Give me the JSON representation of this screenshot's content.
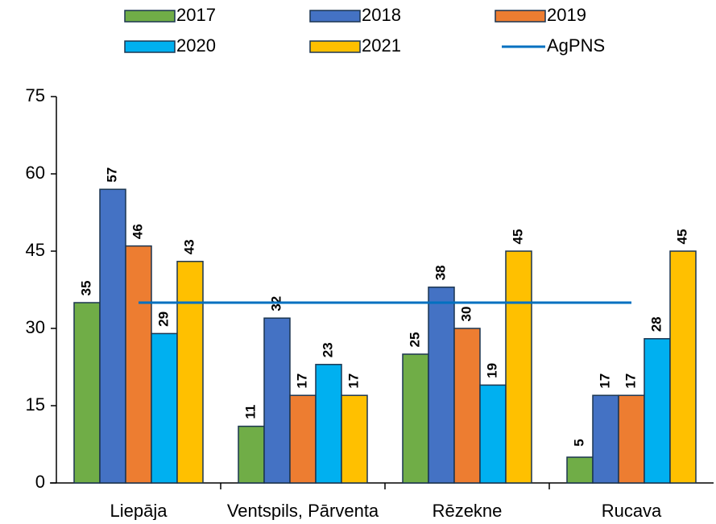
{
  "chart_data": {
    "type": "bar",
    "categories": [
      "Liepāja",
      "Ventspils, Pārventa",
      "Rēzekne",
      "Rucava"
    ],
    "series": [
      {
        "name": "2017",
        "color": "#70ad47",
        "values": [
          35,
          11,
          25,
          5
        ]
      },
      {
        "name": "2018",
        "color": "#4472c4",
        "values": [
          57,
          32,
          38,
          17
        ]
      },
      {
        "name": "2019",
        "color": "#ed7d31",
        "values": [
          46,
          17,
          30,
          17
        ]
      },
      {
        "name": "2020",
        "color": "#00b0f0",
        "values": [
          29,
          23,
          19,
          28
        ]
      },
      {
        "name": "2021",
        "color": "#ffc000",
        "values": [
          43,
          17,
          45,
          45
        ]
      },
      {
        "name": "AgPNS",
        "type": "line",
        "color": "#0070c0",
        "values": [
          35,
          35,
          35,
          35
        ]
      }
    ],
    "ylim": [
      0,
      75
    ],
    "yticks": [
      0,
      15,
      30,
      45,
      60,
      75
    ],
    "grid": false,
    "legend": "top"
  }
}
